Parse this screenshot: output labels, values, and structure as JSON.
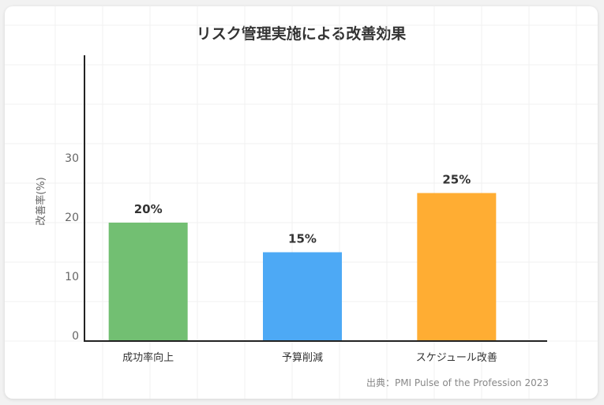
{
  "chart_data": {
    "type": "bar",
    "title": "リスク管理実施による改善効果",
    "categories": [
      "成功率向上",
      "予算削減",
      "スケジュール改善"
    ],
    "values": [
      20,
      15,
      25
    ],
    "value_labels": [
      "20%",
      "15%",
      "25%"
    ],
    "colors": [
      "#72bf72",
      "#4da9f5",
      "#ffad33"
    ],
    "ylabel": "改善率(%)",
    "ylim": [
      0,
      48
    ],
    "yticks": [
      0,
      10,
      20,
      30
    ],
    "grid": true,
    "source": "出典：PMI Pulse of the Profession 2023"
  }
}
